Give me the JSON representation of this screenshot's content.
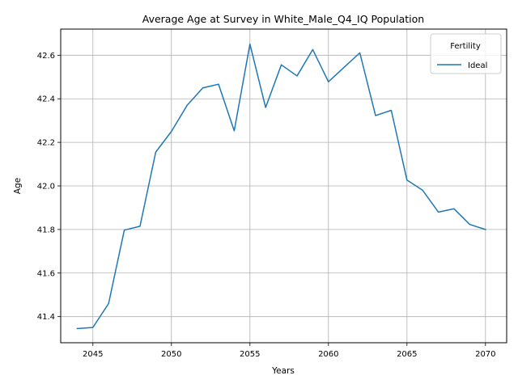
{
  "chart_data": {
    "type": "line",
    "title": "Average Age at Survey in White_Male_Q4_IQ Population",
    "xlabel": "Years",
    "ylabel": "Age",
    "xlim": [
      2042.95,
      2071.35
    ],
    "ylim": [
      41.28,
      42.72
    ],
    "x_ticks": [
      2045,
      2050,
      2055,
      2060,
      2065,
      2070
    ],
    "y_ticks": [
      41.4,
      41.6,
      41.8,
      42.0,
      42.2,
      42.4,
      42.6
    ],
    "y_tick_labels": [
      "41.4",
      "41.6",
      "41.8",
      "42.0",
      "42.2",
      "42.4",
      "42.6"
    ],
    "grid": true,
    "legend": {
      "title": "Fertility",
      "placement": "top-right"
    },
    "x": [
      2044,
      2045,
      2046,
      2047,
      2048,
      2049,
      2050,
      2051,
      2052,
      2053,
      2054,
      2055,
      2056,
      2057,
      2058,
      2059,
      2060,
      2061,
      2062,
      2063,
      2064,
      2065,
      2066,
      2067,
      2068,
      2069,
      2070
    ],
    "series": [
      {
        "name": "Ideal",
        "color": "#1f77b4",
        "values": [
          41.345,
          41.35,
          41.46,
          41.797,
          41.815,
          42.155,
          42.25,
          42.37,
          42.45,
          42.467,
          42.253,
          42.651,
          42.36,
          42.556,
          42.505,
          42.626,
          42.478,
          42.545,
          42.611,
          42.323,
          42.347,
          42.027,
          41.98,
          41.88,
          41.895,
          41.823,
          41.8
        ]
      }
    ]
  }
}
